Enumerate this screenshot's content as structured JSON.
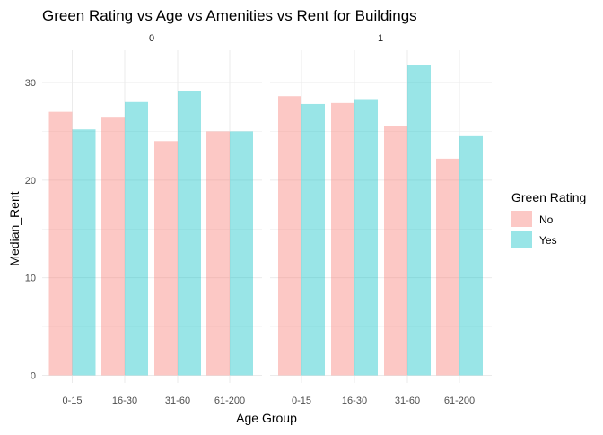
{
  "chart_data": {
    "type": "bar",
    "title": "Green Rating vs Age vs Amenities vs Rent for Buildings",
    "xlabel": "Age Group",
    "ylabel": "Median_Rent",
    "categories": [
      "0-15",
      "16-30",
      "31-60",
      "61-200"
    ],
    "ylim": [
      0,
      33
    ],
    "yticks": [
      0,
      10,
      20,
      30
    ],
    "grid": true,
    "legend": {
      "title": "Green Rating",
      "placement": "right",
      "entries": [
        {
          "label": "No",
          "color": "#F8766D"
        },
        {
          "label": "Yes",
          "color": "#00BFC4"
        }
      ]
    },
    "panels": [
      {
        "facet": "0",
        "series": [
          {
            "name": "No",
            "values": [
              27.0,
              26.4,
              24.0,
              25.0
            ]
          },
          {
            "name": "Yes",
            "values": [
              25.2,
              28.0,
              29.1,
              25.0
            ]
          }
        ]
      },
      {
        "facet": "1",
        "series": [
          {
            "name": "No",
            "values": [
              28.6,
              27.9,
              25.5,
              22.2
            ]
          },
          {
            "name": "Yes",
            "values": [
              27.8,
              28.3,
              31.8,
              24.5
            ]
          }
        ]
      }
    ]
  },
  "colors": {
    "no": "#F8766D",
    "yes": "#00BFC4",
    "bar_opacity": 0.4,
    "grid": "#EBEBEB",
    "text": "#4D4D4D",
    "title": "#000000"
  }
}
